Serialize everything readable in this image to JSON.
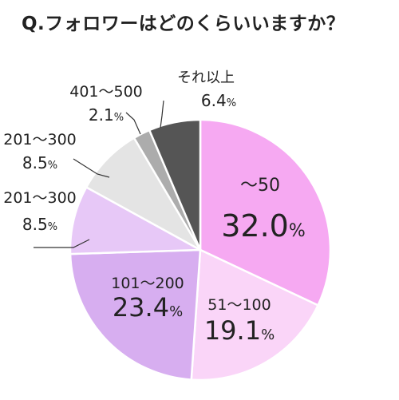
{
  "chart_data": {
    "type": "pie",
    "title": "Q.フォロワーはどのくらいいますか？",
    "start_angle_deg": 0,
    "direction": "clockwise",
    "slices": [
      {
        "label": "〜50",
        "value": 32.0,
        "pct": "32.0%",
        "color": "#f6a9f2"
      },
      {
        "label": "51〜100",
        "value": 19.1,
        "pct": "19.1%",
        "color": "#fad5f8"
      },
      {
        "label": "101〜200",
        "value": 23.4,
        "pct": "23.4%",
        "color": "#d7aef0"
      },
      {
        "label": "201〜300",
        "value": 8.5,
        "pct": "8.5%",
        "color": "#e7c8f7"
      },
      {
        "label": "201〜300",
        "value": 8.5,
        "pct": "8.5%",
        "color": "#e4e4e4"
      },
      {
        "label": "401〜500",
        "value": 2.1,
        "pct": "2.1%",
        "color": "#acacac"
      },
      {
        "label": "それ以上",
        "value": 6.4,
        "pct": "6.4%",
        "color": "#555555"
      }
    ]
  }
}
